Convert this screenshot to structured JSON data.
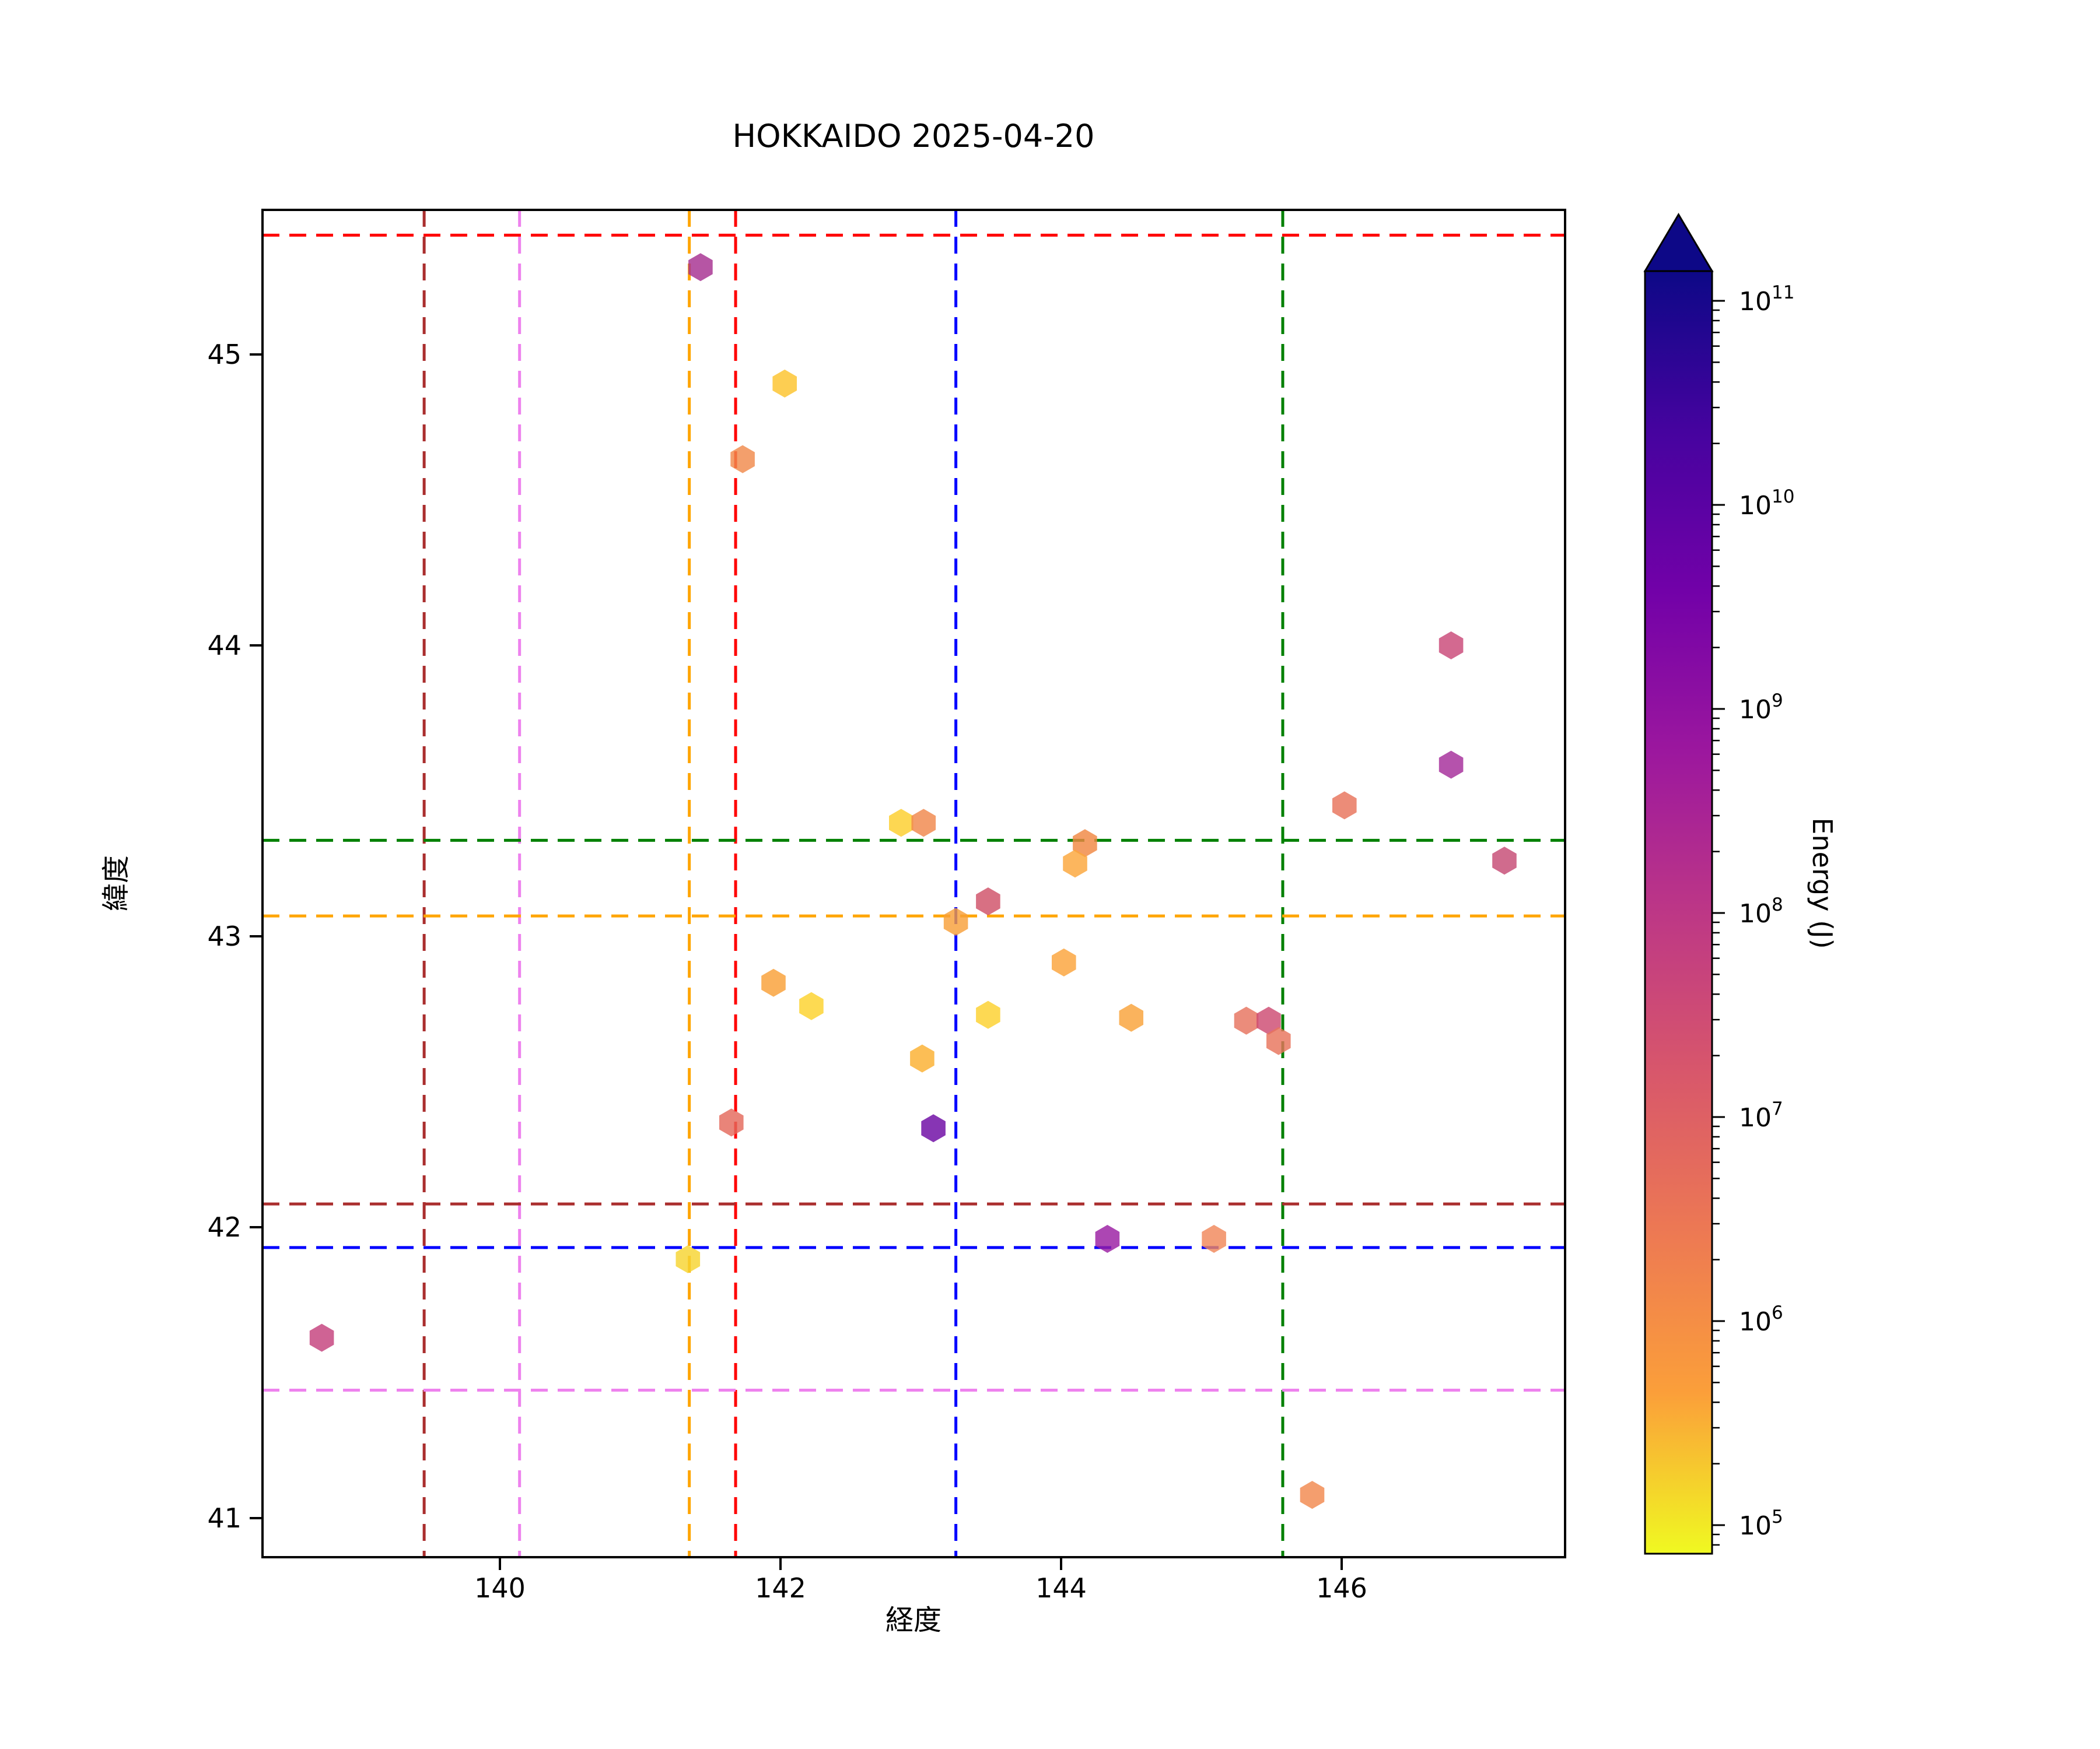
{
  "title": "HOKKAIDO 2025-04-20",
  "chart_data": {
    "type": "scatter",
    "title": "HOKKAIDO 2025-04-20",
    "xlabel": "経度",
    "ylabel": "緯度",
    "xlim": [
      138.3,
      147.6
    ],
    "ylim": [
      40.87,
      45.5
    ],
    "xticks": [
      140,
      142,
      144,
      146
    ],
    "yticks": [
      41,
      42,
      43,
      44,
      45
    ],
    "grid": false,
    "marker": "hexagon",
    "legend_position": "none",
    "points": [
      {
        "lon": 141.43,
        "lat": 45.3,
        "color": "#a62f90",
        "energy_j": "8e8"
      },
      {
        "lon": 142.03,
        "lat": 44.9,
        "color": "#fcc32c",
        "energy_j": "4e5"
      },
      {
        "lon": 141.73,
        "lat": 44.64,
        "color": "#f08a4c",
        "energy_j": "4e6"
      },
      {
        "lon": 146.78,
        "lat": 44.0,
        "color": "#c94878",
        "energy_j": "1e8"
      },
      {
        "lon": 146.78,
        "lat": 43.59,
        "color": "#a52c9a",
        "energy_j": "9e8"
      },
      {
        "lon": 146.02,
        "lat": 43.45,
        "color": "#e8735a",
        "energy_j": "1e7"
      },
      {
        "lon": 147.16,
        "lat": 43.26,
        "color": "#c64a74",
        "energy_j": "1.2e8"
      },
      {
        "lon": 142.86,
        "lat": 43.39,
        "color": "#fcce2c",
        "energy_j": "3e5"
      },
      {
        "lon": 143.02,
        "lat": 43.39,
        "color": "#f0874c",
        "energy_j": "4e6"
      },
      {
        "lon": 144.17,
        "lat": 43.32,
        "color": "#f08742",
        "energy_j": "4e6"
      },
      {
        "lon": 144.1,
        "lat": 43.25,
        "color": "#fba63b",
        "energy_j": "1e6"
      },
      {
        "lon": 143.48,
        "lat": 43.12,
        "color": "#cf5068",
        "energy_j": "5e7"
      },
      {
        "lon": 143.25,
        "lat": 43.05,
        "color": "#f8a039",
        "energy_j": "1.4e6"
      },
      {
        "lon": 144.02,
        "lat": 42.91,
        "color": "#fba43a",
        "energy_j": "1.2e6"
      },
      {
        "lon": 141.95,
        "lat": 42.84,
        "color": "#f9a037",
        "energy_j": "1.3e6"
      },
      {
        "lon": 142.22,
        "lat": 42.76,
        "color": "#fcd22c",
        "energy_j": "2.5e5"
      },
      {
        "lon": 143.48,
        "lat": 42.73,
        "color": "#fcd12d",
        "energy_j": "2.5e5"
      },
      {
        "lon": 144.5,
        "lat": 42.72,
        "color": "#f9a239",
        "energy_j": "1.3e6"
      },
      {
        "lon": 145.32,
        "lat": 42.71,
        "color": "#e7735e",
        "energy_j": "1e7"
      },
      {
        "lon": 145.48,
        "lat": 42.71,
        "color": "#cd4a72",
        "energy_j": "8e7"
      },
      {
        "lon": 145.55,
        "lat": 42.64,
        "color": "#e8745c",
        "energy_j": "1e7"
      },
      {
        "lon": 143.01,
        "lat": 42.58,
        "color": "#fbb02f",
        "energy_j": "7e5"
      },
      {
        "lon": 141.65,
        "lat": 42.36,
        "color": "#e4695c",
        "energy_j": "1.6e7"
      },
      {
        "lon": 143.09,
        "lat": 42.34,
        "color": "#6c09a4",
        "energy_j": "7e9"
      },
      {
        "lon": 144.33,
        "lat": 41.96,
        "color": "#9a1da2",
        "energy_j": "2e9"
      },
      {
        "lon": 145.09,
        "lat": 41.96,
        "color": "#f0875a",
        "energy_j": "4e6"
      },
      {
        "lon": 141.34,
        "lat": 41.89,
        "color": "#f7d431",
        "energy_j": "1.8e5"
      },
      {
        "lon": 138.73,
        "lat": 41.62,
        "color": "#c4417c",
        "energy_j": "1.4e8"
      },
      {
        "lon": 145.79,
        "lat": 41.08,
        "color": "#f2894e",
        "energy_j": "3.5e6"
      }
    ],
    "vlines": [
      {
        "lon": 139.46,
        "color": "#aa2e2e",
        "style": "dashed"
      },
      {
        "lon": 140.14,
        "color": "#ee82ee",
        "style": "dashed"
      },
      {
        "lon": 141.35,
        "color": "#ffa500",
        "style": "dashed"
      },
      {
        "lon": 141.68,
        "color": "#ff0000",
        "style": "dashed"
      },
      {
        "lon": 143.25,
        "color": "#0000ff",
        "style": "dashed"
      },
      {
        "lon": 145.58,
        "color": "#008000",
        "style": "dashed"
      }
    ],
    "hlines": [
      {
        "lat": 45.41,
        "color": "#ff0000",
        "style": "dashed"
      },
      {
        "lat": 43.33,
        "color": "#008000",
        "style": "dashed"
      },
      {
        "lat": 43.07,
        "color": "#ffa500",
        "style": "dashed"
      },
      {
        "lat": 42.08,
        "color": "#aa2e2e",
        "style": "dashed"
      },
      {
        "lat": 41.93,
        "color": "#0000ff",
        "style": "dashed"
      },
      {
        "lat": 41.44,
        "color": "#ee82ee",
        "style": "dashed"
      }
    ],
    "colorbar": {
      "label": "Energy (J)",
      "scale": "log",
      "tick_base": "10",
      "tick_exponents": [
        5,
        6,
        7,
        8,
        9,
        10,
        11
      ],
      "range_log10": [
        4.86,
        11.15
      ],
      "extend": "max",
      "colormap": "plasma_r",
      "plasma_stops": [
        "#0d0887",
        "#46039f",
        "#7201a8",
        "#9c179e",
        "#bd3786",
        "#d8576b",
        "#ed7953",
        "#fb9f3a",
        "#f0f921"
      ]
    }
  }
}
